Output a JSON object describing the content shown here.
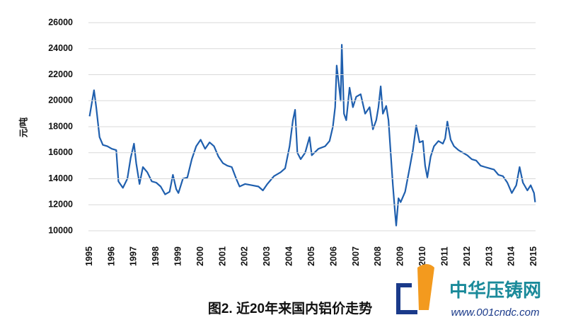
{
  "chart_data": {
    "type": "line",
    "caption": "图2. 近20年来国内铝价走势",
    "y_label": "元/吨",
    "watermark": {
      "name": "中华压铸网",
      "url": "www.001cndc.com"
    },
    "xlim": [
      1994.95,
      2015.07
    ],
    "xticks": [
      1995,
      1996,
      1997,
      1998,
      1999,
      2000,
      2001,
      2002,
      2003,
      2004,
      2005,
      2006,
      2007,
      2008,
      2009,
      2010,
      2011,
      2012,
      2013,
      2014,
      2015
    ],
    "ylim": [
      10000,
      26000
    ],
    "yticks": [
      10000,
      12000,
      14000,
      16000,
      18000,
      20000,
      22000,
      24000,
      26000
    ],
    "grid": true,
    "series": [
      {
        "name": "铝价",
        "color": "#1f5fae",
        "x": [
          1995.0,
          1995.1,
          1995.2,
          1995.3,
          1995.45,
          1995.6,
          1995.8,
          1996.0,
          1996.2,
          1996.3,
          1996.5,
          1996.7,
          1996.85,
          1997.0,
          1997.1,
          1997.25,
          1997.4,
          1997.6,
          1997.8,
          1998.0,
          1998.2,
          1998.4,
          1998.6,
          1998.75,
          1998.9,
          1999.0,
          1999.2,
          1999.4,
          1999.6,
          1999.8,
          2000.0,
          2000.2,
          2000.4,
          2000.6,
          2000.8,
          2001.0,
          2001.2,
          2001.4,
          2001.6,
          2001.75,
          2002.0,
          2002.3,
          2002.6,
          2002.8,
          2003.0,
          2003.3,
          2003.6,
          2003.8,
          2004.0,
          2004.15,
          2004.25,
          2004.35,
          2004.5,
          2004.7,
          2004.9,
          2005.0,
          2005.3,
          2005.6,
          2005.8,
          2005.95,
          2006.05,
          2006.12,
          2006.2,
          2006.3,
          2006.35,
          2006.45,
          2006.55,
          2006.7,
          2006.85,
          2007.0,
          2007.2,
          2007.4,
          2007.6,
          2007.75,
          2007.9,
          2008.0,
          2008.1,
          2008.2,
          2008.35,
          2008.45,
          2008.55,
          2008.65,
          2008.75,
          2008.8,
          2008.9,
          2009.0,
          2009.2,
          2009.4,
          2009.55,
          2009.7,
          2009.85,
          2010.0,
          2010.1,
          2010.2,
          2010.35,
          2010.5,
          2010.7,
          2010.9,
          2011.0,
          2011.1,
          2011.25,
          2011.4,
          2011.6,
          2011.8,
          2012.0,
          2012.2,
          2012.4,
          2012.6,
          2012.8,
          2013.0,
          2013.2,
          2013.4,
          2013.6,
          2013.8,
          2014.0,
          2014.2,
          2014.35,
          2014.5,
          2014.7,
          2014.85,
          2015.0,
          2015.05
        ],
        "values": [
          18800,
          19800,
          20800,
          19500,
          17200,
          16600,
          16500,
          16300,
          16200,
          13800,
          13300,
          14000,
          15600,
          16700,
          15200,
          13600,
          14900,
          14500,
          13800,
          13700,
          13400,
          12800,
          13000,
          14300,
          13200,
          12900,
          14000,
          14100,
          15500,
          16500,
          17000,
          16300,
          16800,
          16500,
          15700,
          15200,
          15000,
          14900,
          14000,
          13400,
          13600,
          13500,
          13400,
          13100,
          13600,
          14200,
          14500,
          14800,
          16500,
          18500,
          19300,
          16000,
          15500,
          16000,
          17200,
          15800,
          16300,
          16500,
          16900,
          18000,
          19500,
          22700,
          21500,
          20000,
          24300,
          19000,
          18500,
          21000,
          19500,
          20300,
          20500,
          19000,
          19500,
          17800,
          18500,
          19500,
          21100,
          19000,
          19600,
          18500,
          16000,
          13500,
          11300,
          10400,
          12500,
          12200,
          13000,
          14800,
          16200,
          18100,
          16800,
          16900,
          15000,
          14100,
          15700,
          16500,
          16900,
          16700,
          17100,
          18400,
          17000,
          16500,
          16200,
          16000,
          15800,
          15500,
          15400,
          15000,
          14900,
          14800,
          14700,
          14300,
          14200,
          13700,
          12900,
          13500,
          14900,
          13700,
          13100,
          13500,
          12900,
          12200
        ]
      }
    ]
  }
}
